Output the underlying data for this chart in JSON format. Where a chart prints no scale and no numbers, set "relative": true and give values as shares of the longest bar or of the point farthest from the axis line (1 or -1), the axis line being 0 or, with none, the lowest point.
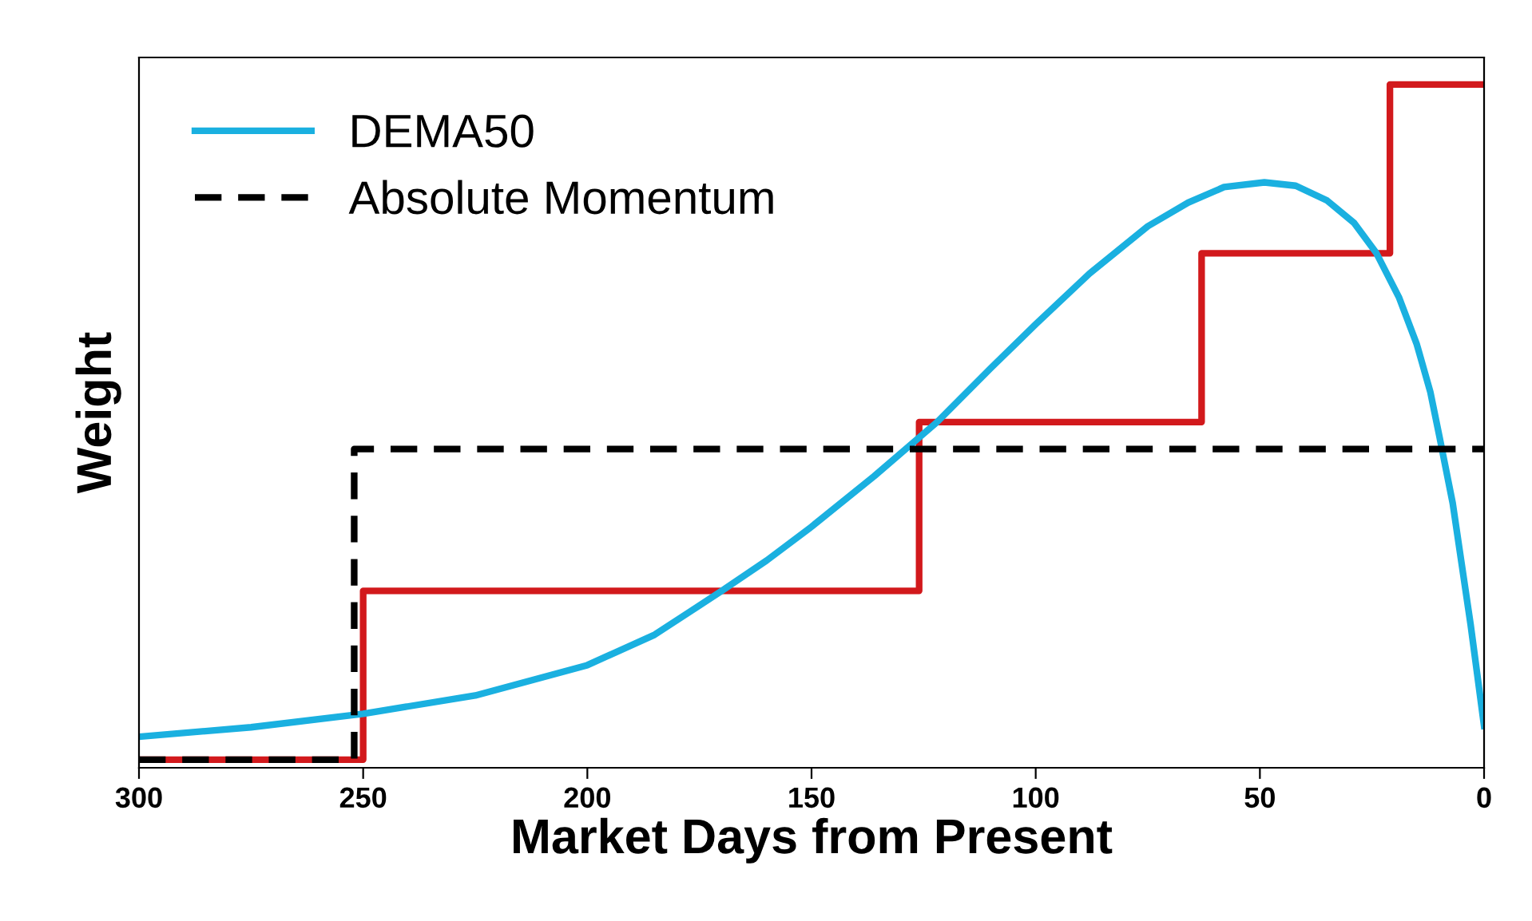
{
  "chart_data": {
    "type": "line",
    "relative": true,
    "xlabel": "Market Days from Present",
    "ylabel": "Weight",
    "xlim": [
      300,
      0
    ],
    "xticks": [
      300,
      250,
      200,
      150,
      100,
      50,
      0
    ],
    "grid": false,
    "legend": "top left",
    "marker": "none",
    "series": [
      {
        "type": "step",
        "color": "#d2191c",
        "line_style": "solid",
        "x": [
          300,
          250,
          126,
          63,
          21,
          0
        ],
        "values": [
          0,
          0.25,
          0.5,
          0.75,
          1,
          1
        ]
      },
      {
        "name": "DEMA50",
        "color": "#1ab0e0",
        "line_style": "solid",
        "x": [
          300,
          275,
          250,
          225,
          200,
          185,
          170,
          160,
          150,
          136,
          122,
          110,
          100,
          88,
          75,
          66,
          58,
          49,
          42,
          35,
          29,
          24,
          19,
          15,
          12,
          10,
          7,
          5,
          3,
          0
        ],
        "values": [
          0.034,
          0.048,
          0.068,
          0.095,
          0.14,
          0.185,
          0.25,
          0.295,
          0.345,
          0.42,
          0.5,
          0.58,
          0.645,
          0.72,
          0.79,
          0.825,
          0.848,
          0.855,
          0.85,
          0.828,
          0.795,
          0.75,
          0.685,
          0.615,
          0.545,
          0.48,
          0.38,
          0.29,
          0.2,
          0.05
        ]
      },
      {
        "name": "Absolute Momentum",
        "type": "step",
        "color": "#000000",
        "line_style": "dashed",
        "x": [
          300,
          252,
          0
        ],
        "values": [
          0,
          0.46,
          0.46
        ]
      }
    ]
  }
}
